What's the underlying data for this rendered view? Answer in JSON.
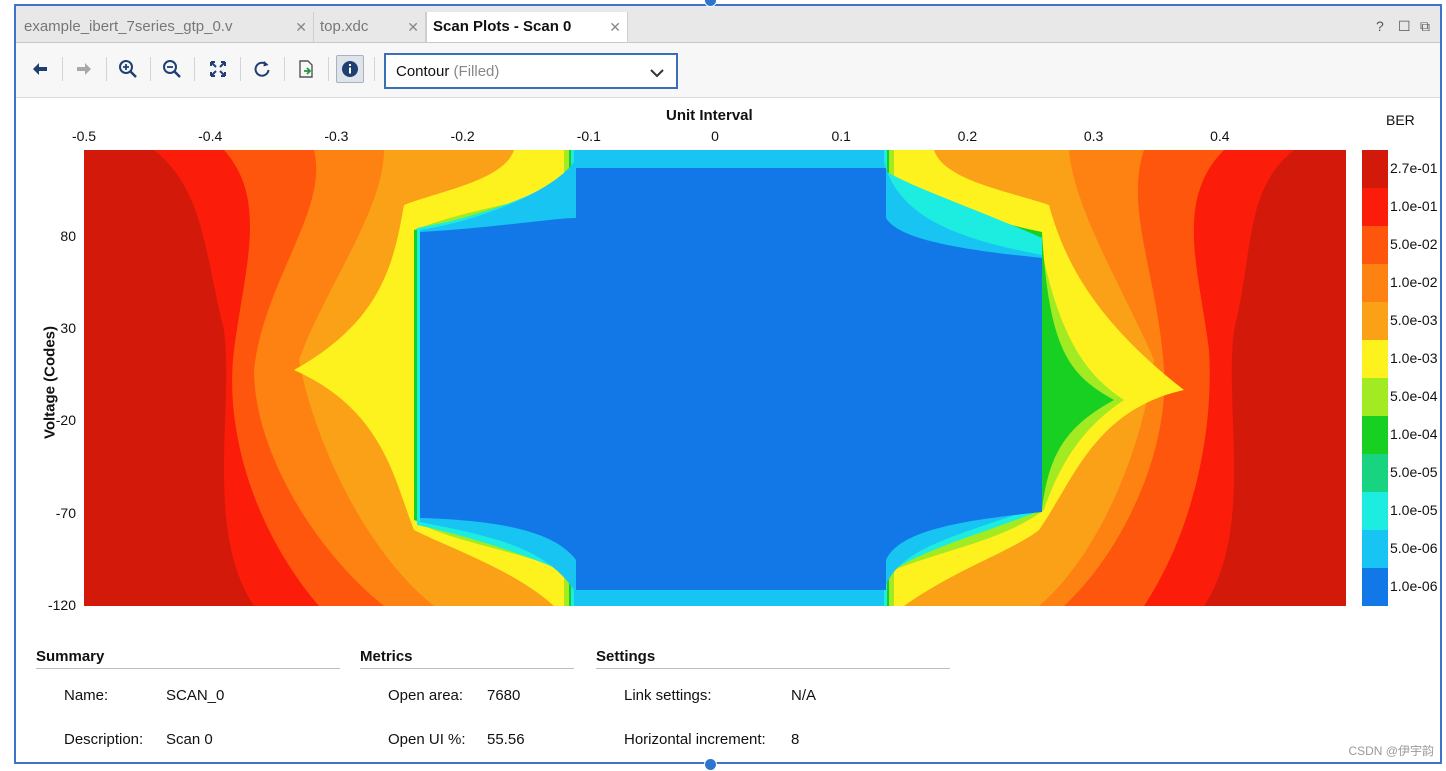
{
  "tabs": [
    {
      "label": "example_ibert_7series_gtp_0.v",
      "active": false
    },
    {
      "label": "top.xdc",
      "active": false
    },
    {
      "label": "Scan Plots - Scan 0",
      "active": true
    }
  ],
  "window_controls": {
    "help": "?",
    "restore": "☐",
    "float": "⧉"
  },
  "toolbar": {
    "icons": [
      "back-arrow-icon",
      "forward-arrow-icon",
      "zoom-in-icon",
      "zoom-out-icon",
      "zoom-fit-icon",
      "refresh-icon",
      "export-icon",
      "info-icon"
    ],
    "plot_type_value": "Contour",
    "plot_type_hint": "(Filled)"
  },
  "chart_data": {
    "type": "heatmap",
    "title": "",
    "xlabel": "Unit Interval",
    "ylabel": "Voltage (Codes)",
    "x_ticks": [
      "-0.5",
      "-0.4",
      "-0.3",
      "-0.2",
      "-0.1",
      "0",
      "0.1",
      "0.2",
      "0.3",
      "0.4"
    ],
    "y_ticks": [
      "80",
      "30",
      "-20",
      "-70",
      "-120"
    ],
    "xlim": [
      -0.5,
      0.5
    ],
    "ylim": [
      -120,
      127
    ],
    "colorbar_title": "BER",
    "colorbar_labels": [
      "2.7e-01",
      "1.0e-01",
      "5.0e-02",
      "1.0e-02",
      "5.0e-03",
      "1.0e-03",
      "5.0e-04",
      "1.0e-04",
      "5.0e-05",
      "1.0e-05",
      "5.0e-06",
      "1.0e-06"
    ],
    "colorbar_colors": [
      "#d31a0a",
      "#fb1d0a",
      "#fe560c",
      "#fd8212",
      "#fba118",
      "#fdf21e",
      "#a2ea22",
      "#18d022",
      "#18d480",
      "#1dede0",
      "#18c4f2",
      "#1278e8"
    ],
    "eye_opening": {
      "open_ui_percent": 55.56,
      "open_area": 7680
    }
  },
  "summary": {
    "title": "Summary",
    "name_label": "Name:",
    "name_value": "SCAN_0",
    "desc_label": "Description:",
    "desc_value": "Scan 0"
  },
  "metrics": {
    "title": "Metrics",
    "open_area_label": "Open area:",
    "open_area_value": "7680",
    "open_ui_label": "Open UI %:",
    "open_ui_value": "55.56"
  },
  "settings": {
    "title": "Settings",
    "link_label": "Link settings:",
    "link_value": "N/A",
    "hinc_label": "Horizontal increment:",
    "hinc_value": "8"
  },
  "watermark": "CSDN @伊宇韵"
}
